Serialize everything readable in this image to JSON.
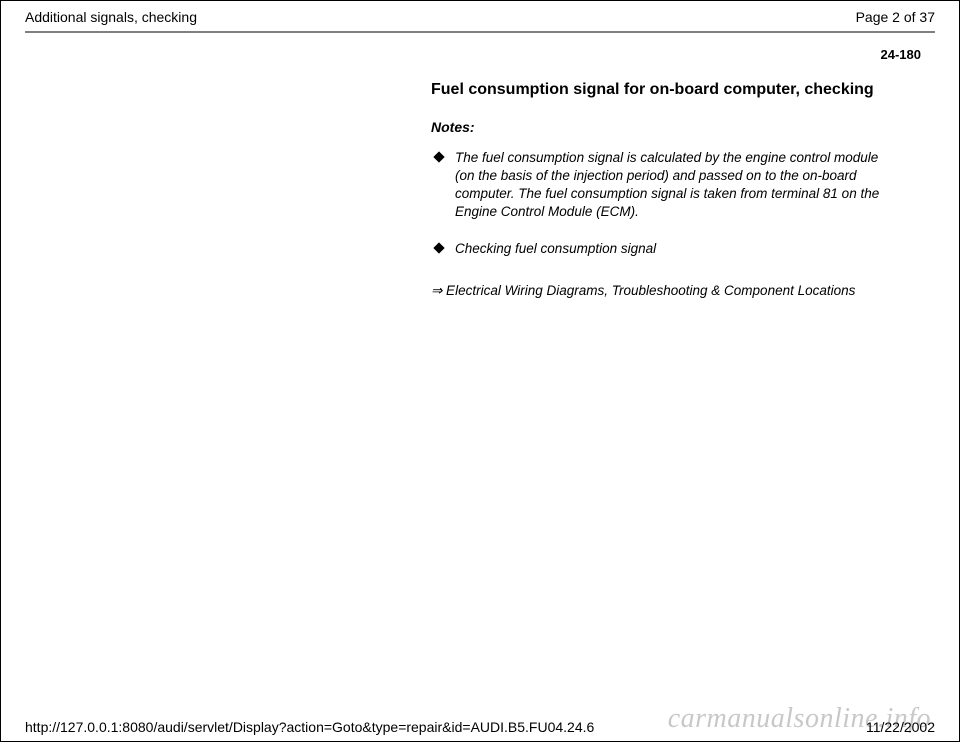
{
  "header": {
    "title": "Additional signals, checking",
    "page_label": "Page 2 of 37"
  },
  "page_number": "24-180",
  "content": {
    "section_title": "Fuel consumption signal for on-board computer, checking",
    "notes_label": "Notes:",
    "notes": [
      "The fuel consumption signal is calculated by the engine control module (on the basis of the injection period) and passed on to the on-board computer. The fuel consumption signal is taken from terminal 81 on the Engine Control Module (ECM).",
      "Checking fuel consumption signal"
    ],
    "reference": "⇒ Electrical Wiring Diagrams, Troubleshooting & Component Locations"
  },
  "footer": {
    "url": "http://127.0.0.1:8080/audi/servlet/Display?action=Goto&type=repair&id=AUDI.B5.FU04.24.6",
    "date": "11/22/2002"
  },
  "watermark": "carmanualsonline.info"
}
